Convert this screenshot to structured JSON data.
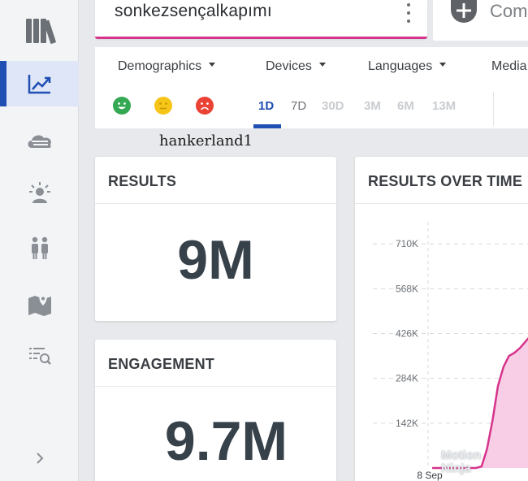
{
  "search": {
    "value": "sonkezsençalkapımı"
  },
  "compare": {
    "label": "Com"
  },
  "filters": {
    "dropdowns": [
      "Demographics",
      "Devices",
      "Languages",
      "Media"
    ],
    "moods": [
      {
        "name": "positive",
        "color": "#34a853"
      },
      {
        "name": "neutral",
        "color": "#f5c518"
      },
      {
        "name": "negative",
        "color": "#ea4335"
      }
    ],
    "ranges": [
      "1D",
      "7D",
      "30D",
      "3M",
      "6M",
      "13M"
    ],
    "active_range": "1D"
  },
  "watermark": {
    "text": "hankerland1"
  },
  "results": {
    "title": "RESULTS",
    "value": "9M"
  },
  "engagement": {
    "title": "ENGAGEMENT",
    "value": "9.7M"
  },
  "results_over_time": {
    "title": "RESULTS OVER TIME"
  },
  "chart_data": {
    "type": "area",
    "title": "RESULTS OVER TIME",
    "y_ticks": [
      "710K",
      "568K",
      "426K",
      "284K",
      "142K"
    ],
    "y_tick_values": [
      710000,
      568000,
      426000,
      284000,
      142000
    ],
    "x_ticks": [
      "8 Sep"
    ],
    "ylim": [
      0,
      780000
    ],
    "x": [
      0,
      1,
      2,
      3,
      4,
      5,
      6,
      7,
      8,
      9,
      10,
      11,
      12,
      13,
      14,
      15,
      16,
      17,
      18,
      19,
      20
    ],
    "values": [
      0,
      0,
      0,
      0,
      0,
      0,
      0,
      0,
      0,
      5000,
      60000,
      150000,
      260000,
      320000,
      355000,
      365000,
      380000,
      400000,
      420000,
      440000,
      460000
    ],
    "xlim": [
      0,
      20
    ],
    "color": "#d6338b"
  },
  "overlay": {
    "line1": "Motion",
    "line2": "Ninja"
  },
  "colors": {
    "accent": "#1f4fb3",
    "search_underline": "#d6338b",
    "chart_line": "#d6338b"
  }
}
